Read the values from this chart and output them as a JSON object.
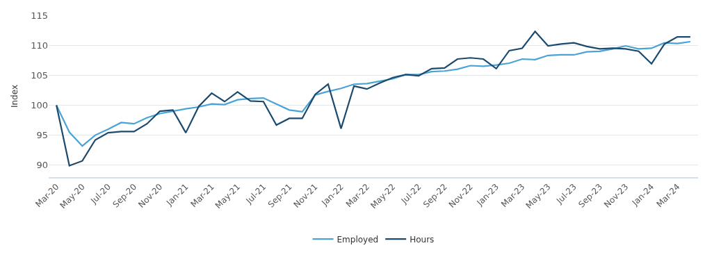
{
  "chart_data": {
    "type": "line",
    "ylabel": "Index",
    "categories": [
      "Mar-20",
      null,
      "May-20",
      null,
      "Jul-20",
      null,
      "Sep-20",
      null,
      "Nov-20",
      null,
      "Jan-21",
      null,
      "Mar-21",
      null,
      "May-21",
      null,
      "Jul-21",
      null,
      "Sep-21",
      null,
      "Nov-21",
      null,
      "Jan-22",
      null,
      "Mar-22",
      null,
      "May-22",
      null,
      "Jul-22",
      null,
      "Sep-22",
      null,
      "Nov-22",
      null,
      "Jan-23",
      null,
      "Mar-23",
      null,
      "May-23",
      null,
      "Jul-23",
      null,
      "Sep-23",
      null,
      "Nov-23",
      null,
      "Jan-24",
      null,
      "Mar-24",
      null
    ],
    "series": [
      {
        "name": "Employed",
        "color": "#4aa3d6",
        "values": [
          100,
          95.5,
          93.2,
          95,
          96,
          97.1,
          96.9,
          97.9,
          98.6,
          99,
          99.4,
          99.7,
          100.2,
          100.1,
          100.9,
          101.1,
          101.2,
          100.2,
          99.2,
          98.9,
          101.7,
          102.3,
          102.8,
          103.5,
          103.6,
          104,
          104.4,
          105.1,
          105.1,
          105.6,
          105.7,
          106,
          106.6,
          106.5,
          106.7,
          107,
          107.7,
          107.6,
          108.3,
          108.4,
          108.4,
          108.9,
          109,
          109.4,
          109.9,
          109.4,
          109.5,
          110.4,
          110.3,
          110.6
        ]
      },
      {
        "name": "Hours",
        "color": "#1b4a6e",
        "values": [
          100,
          89.9,
          90.7,
          94.2,
          95.4,
          95.6,
          95.6,
          96.9,
          99,
          99.2,
          95.4,
          99.8,
          102,
          100.6,
          102.2,
          100.7,
          100.6,
          96.7,
          97.8,
          97.8,
          101.8,
          103.5,
          96.1,
          103.2,
          102.7,
          103.7,
          104.6,
          105.1,
          104.9,
          106.1,
          106.2,
          107.7,
          107.9,
          107.7,
          106.1,
          109.1,
          109.5,
          112.3,
          109.9,
          110.2,
          110.4,
          109.8,
          109.4,
          109.5,
          109.4,
          109,
          106.9,
          110.2,
          111.4,
          111.4
        ]
      }
    ],
    "ylim": [
      88,
      115
    ],
    "yticks": [
      90,
      95,
      100,
      105,
      110,
      115
    ],
    "grid": "y",
    "legend": "bottom",
    "marker": "none",
    "line_style": "solid"
  }
}
